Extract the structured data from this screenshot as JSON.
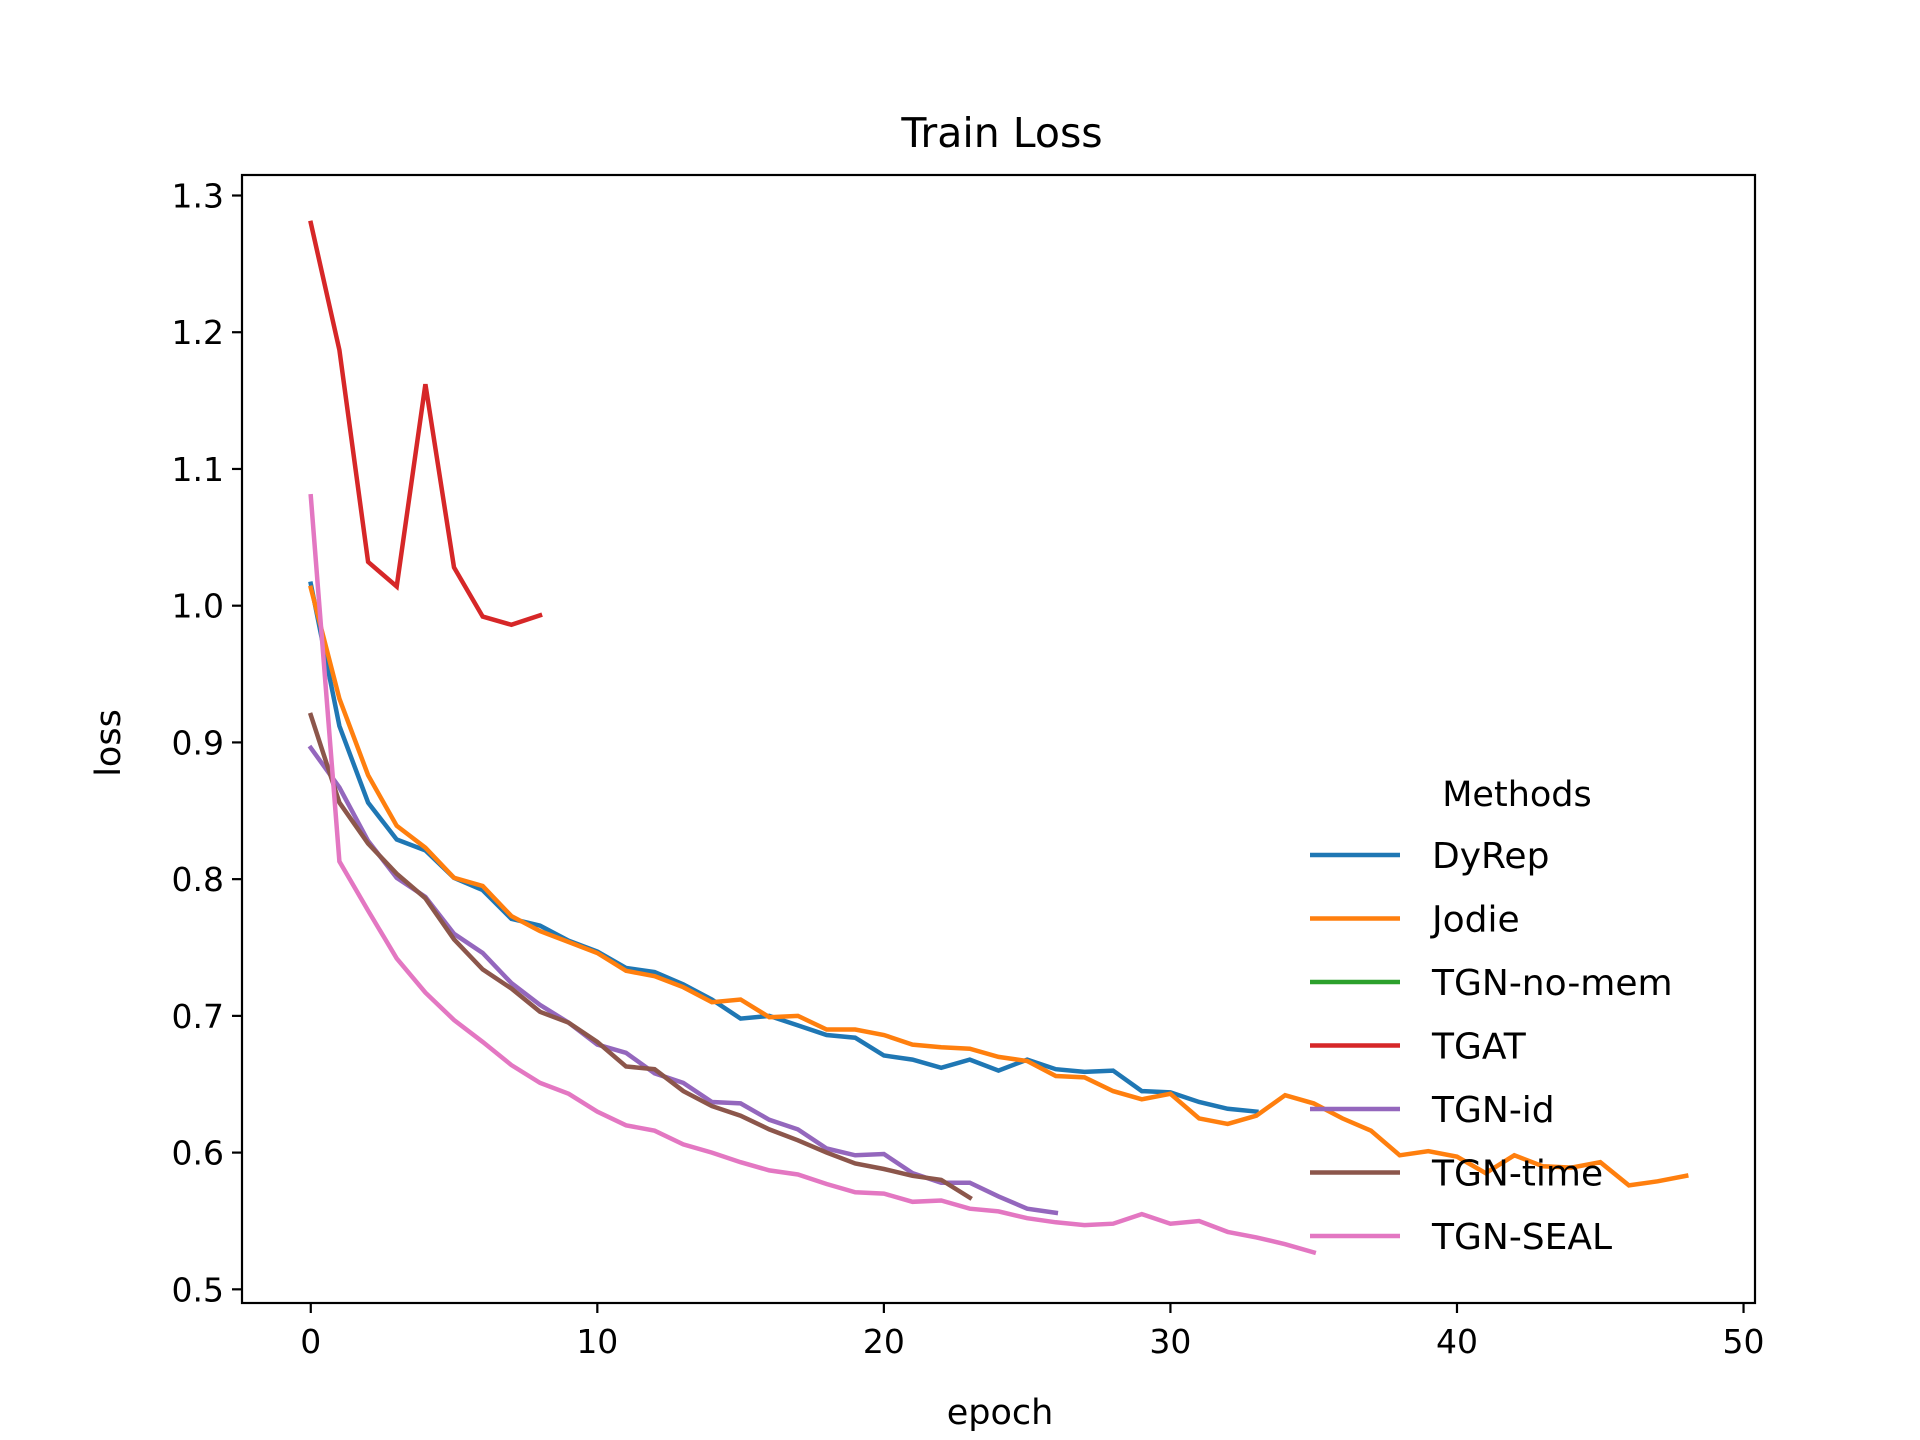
{
  "chart_data": {
    "type": "line",
    "title": "Train Loss",
    "xlabel": "epoch",
    "ylabel": "loss",
    "xlim": [
      -2.4,
      50.4
    ],
    "ylim": [
      0.49,
      1.315
    ],
    "xticks": [
      0,
      10,
      20,
      30,
      40,
      50
    ],
    "xtick_labels": [
      "0",
      "10",
      "20",
      "30",
      "40",
      "50"
    ],
    "yticks": [
      0.5,
      0.6,
      0.7,
      0.8,
      0.9,
      1.0,
      1.1,
      1.2,
      1.3
    ],
    "ytick_labels": [
      "0.5",
      "0.6",
      "0.7",
      "0.8",
      "0.9",
      "1.0",
      "1.1",
      "1.2",
      "1.3"
    ],
    "grid": false,
    "legend": {
      "title": "Methods",
      "position": "center-right"
    },
    "series": [
      {
        "name": "DyRep",
        "color": "#1f77b4",
        "values": [
          1.016,
          0.912,
          0.856,
          0.829,
          0.821,
          0.801,
          0.792,
          0.771,
          0.766,
          0.755,
          0.747,
          0.735,
          0.732,
          0.723,
          0.712,
          0.698,
          0.7,
          0.693,
          0.686,
          0.684,
          0.671,
          0.668,
          0.662,
          0.668,
          0.66,
          0.668,
          0.661,
          0.659,
          0.66,
          0.645,
          0.644,
          0.637,
          0.632,
          0.63
        ]
      },
      {
        "name": "Jodie",
        "color": "#ff7f0e",
        "values": [
          1.013,
          0.932,
          0.876,
          0.839,
          0.823,
          0.801,
          0.795,
          0.773,
          0.762,
          0.754,
          0.746,
          0.733,
          0.729,
          0.721,
          0.71,
          0.712,
          0.699,
          0.7,
          0.69,
          0.69,
          0.686,
          0.679,
          0.677,
          0.676,
          0.67,
          0.667,
          0.656,
          0.655,
          0.645,
          0.639,
          0.643,
          0.625,
          0.621,
          0.627,
          0.642,
          0.636,
          0.625,
          0.616,
          0.598,
          0.601,
          0.597,
          0.585,
          0.598,
          0.59,
          0.589,
          0.593,
          0.576,
          0.579,
          0.583
        ]
      },
      {
        "name": "TGN-no-mem",
        "color": "#2ca02c",
        "values": []
      },
      {
        "name": "TGAT",
        "color": "#d62728",
        "values": [
          1.28,
          1.187,
          1.032,
          1.014,
          1.162,
          1.028,
          0.992,
          0.986,
          0.993
        ]
      },
      {
        "name": "TGN-id",
        "color": "#9467bd",
        "values": [
          0.896,
          0.867,
          0.828,
          0.801,
          0.787,
          0.76,
          0.746,
          0.724,
          0.708,
          0.695,
          0.679,
          0.673,
          0.658,
          0.651,
          0.637,
          0.636,
          0.624,
          0.617,
          0.603,
          0.598,
          0.599,
          0.585,
          0.578,
          0.578,
          0.568,
          0.559,
          0.556
        ]
      },
      {
        "name": "TGN-time",
        "color": "#8c564b",
        "values": [
          0.92,
          0.856,
          0.826,
          0.804,
          0.786,
          0.756,
          0.734,
          0.72,
          0.703,
          0.695,
          0.681,
          0.663,
          0.661,
          0.645,
          0.634,
          0.627,
          0.617,
          0.609,
          0.6,
          0.592,
          0.588,
          0.583,
          0.58,
          0.567
        ]
      },
      {
        "name": "TGN-SEAL",
        "color": "#e377c2",
        "values": [
          1.08,
          0.813,
          0.777,
          0.742,
          0.717,
          0.697,
          0.681,
          0.664,
          0.651,
          0.643,
          0.63,
          0.62,
          0.616,
          0.606,
          0.6,
          0.593,
          0.587,
          0.584,
          0.577,
          0.571,
          0.57,
          0.564,
          0.565,
          0.559,
          0.557,
          0.552,
          0.549,
          0.547,
          0.548,
          0.555,
          0.548,
          0.55,
          0.542,
          0.538,
          0.533,
          0.527
        ]
      }
    ]
  }
}
